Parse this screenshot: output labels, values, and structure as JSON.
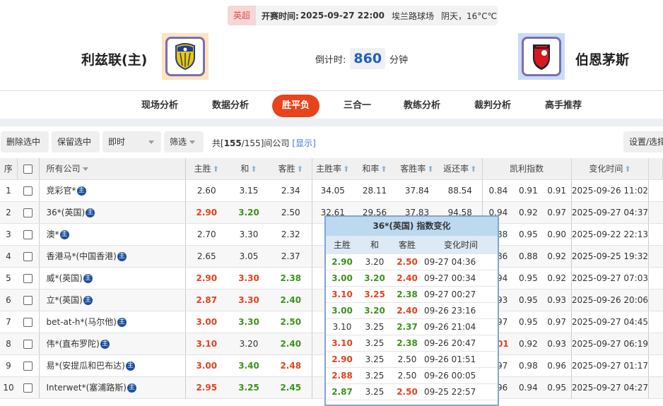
{
  "match": {
    "league": "英超",
    "kickoff_label": "开赛时间:",
    "kickoff": "2025-09-27 22:00",
    "venue": "埃兰路球场",
    "weather": "阴天，16°C℃",
    "home": "利兹联(主)",
    "away": "伯恩茅斯",
    "countdown_label": "倒计时:",
    "countdown": "860",
    "countdown_unit": "分钟"
  },
  "nav": {
    "tabs": [
      "现场分析",
      "数据分析",
      "胜平负",
      "三合一",
      "教练分析",
      "裁判分析",
      "高手推荐"
    ],
    "active": "胜平负"
  },
  "toolbar": {
    "delete": "删除选中",
    "keep": "保留选中",
    "mode": "即时",
    "filter": "筛选",
    "total_prefix": "共[",
    "total_shown": "155",
    "total_all": "/155]间公司",
    "show": "[显示]",
    "settings": "设置/选择"
  },
  "table": {
    "headers": {
      "no": "序",
      "company": "所有公司",
      "home": "主胜",
      "draw": "和",
      "away": "客胜",
      "home_rate": "主胜率",
      "draw_rate": "和率",
      "away_rate": "客胜率",
      "return_rate": "返还率",
      "kelly": "凯利指数",
      "time": "变化时间"
    },
    "badge": "主",
    "rows": [
      {
        "no": "1",
        "company": "竞彩官*",
        "home": "2.60",
        "draw": "3.15",
        "away": "2.34",
        "hc": "",
        "dc": "",
        "ac": "",
        "hr": "34.05",
        "dr": "28.11",
        "ar": "37.84",
        "rr": "88.54",
        "k1": "0.84",
        "k2": "0.91",
        "k3": "0.91",
        "time": "2025-09-26 11:02"
      },
      {
        "no": "2",
        "company": "36*(英国)",
        "home": "2.90",
        "draw": "3.20",
        "away": "2.50",
        "hc": "r",
        "dc": "g",
        "ac": "",
        "hr": "32.61",
        "dr": "29.56",
        "ar": "37.83",
        "rr": "94.58",
        "k1": "0.94",
        "k2": "0.92",
        "k3": "0.97",
        "time": "2025-09-27 04:37"
      },
      {
        "no": "3",
        "company": "澳*",
        "home": "2.70",
        "draw": "3.30",
        "away": "2.32",
        "hc": "",
        "dc": "",
        "ac": "",
        "k1": "0.88",
        "k2": "0.95",
        "k3": "0.90",
        "time": "2025-09-22 22:13"
      },
      {
        "no": "4",
        "company": "香港马*(中国香港)",
        "home": "2.65",
        "draw": "3.05",
        "away": "2.37",
        "hc": "",
        "dc": "",
        "ac": "",
        "k1": "0.86",
        "k2": "0.88",
        "k3": "0.92",
        "time": "2025-09-25 19:32"
      },
      {
        "no": "5",
        "company": "威*(英国)",
        "home": "2.90",
        "draw": "3.30",
        "away": "2.38",
        "hc": "r",
        "dc": "r",
        "ac": "g",
        "k1": "0.94",
        "k2": "0.95",
        "k3": "0.92",
        "time": "2025-09-27 07:03"
      },
      {
        "no": "6",
        "company": "立*(英国)",
        "home": "2.87",
        "draw": "3.30",
        "away": "2.40",
        "hc": "r",
        "dc": "r",
        "ac": "g",
        "k1": "0.93",
        "k2": "0.95",
        "k3": "0.93",
        "time": "2025-09-26 20:06"
      },
      {
        "no": "7",
        "company": "bet-at-h*(马尔他)",
        "home": "3.00",
        "draw": "3.30",
        "away": "2.50",
        "hc": "r",
        "dc": "g",
        "ac": "g",
        "k1": "0.97",
        "k2": "0.95",
        "k3": "0.97",
        "time": "2025-09-27 04:45"
      },
      {
        "no": "8",
        "company": "伟*(直布罗陀)",
        "home": "3.10",
        "draw": "3.20",
        "away": "2.40",
        "hc": "r",
        "dc": "",
        "ac": "g",
        "k1": "1.01",
        "k1c": "r",
        "k2": "0.92",
        "k3": "0.93",
        "time": "2025-09-27 06:19"
      },
      {
        "no": "9",
        "company": "易*(安提瓜和巴布达)",
        "home": "3.00",
        "draw": "3.40",
        "away": "2.48",
        "hc": "r",
        "dc": "g",
        "ac": "r",
        "k1": "0.97",
        "k2": "0.98",
        "k3": "0.96",
        "time": "2025-09-27 01:17"
      },
      {
        "no": "10",
        "company": "Interwet*(塞浦路斯)",
        "home": "2.95",
        "draw": "3.25",
        "away": "2.45",
        "hc": "r",
        "dc": "g",
        "ac": "g",
        "k1": "0.96",
        "k2": "0.94",
        "k3": "0.95",
        "time": "2025-09-27 04:27"
      }
    ]
  },
  "popup": {
    "title": "36*(英国) 指数变化",
    "headers": [
      "主胜",
      "和",
      "客胜",
      "变化时间"
    ],
    "rows": [
      {
        "h": "2.90",
        "hc": "g",
        "d": "3.20",
        "dc": "",
        "a": "2.50",
        "ac": "r",
        "t": "09-27 04:36"
      },
      {
        "h": "3.00",
        "hc": "g",
        "d": "3.20",
        "dc": "g",
        "a": "2.40",
        "ac": "r",
        "t": "09-27 00:34"
      },
      {
        "h": "3.10",
        "hc": "r",
        "d": "3.25",
        "dc": "r",
        "a": "2.38",
        "ac": "g",
        "t": "09-27 00:27"
      },
      {
        "h": "3.00",
        "hc": "g",
        "d": "3.20",
        "dc": "g",
        "a": "2.40",
        "ac": "r",
        "t": "09-26 23:16"
      },
      {
        "h": "3.10",
        "hc": "",
        "d": "3.25",
        "dc": "",
        "a": "2.37",
        "ac": "g",
        "t": "09-26 21:04"
      },
      {
        "h": "3.10",
        "hc": "r",
        "d": "3.25",
        "dc": "",
        "a": "2.38",
        "ac": "g",
        "t": "09-26 20:47"
      },
      {
        "h": "2.90",
        "hc": "r",
        "d": "3.25",
        "dc": "",
        "a": "2.50",
        "ac": "",
        "t": "09-26 01:51"
      },
      {
        "h": "2.88",
        "hc": "r",
        "d": "3.25",
        "dc": "",
        "a": "2.50",
        "ac": "",
        "t": "09-26 00:05"
      },
      {
        "h": "2.87",
        "hc": "g",
        "d": "3.25",
        "dc": "",
        "a": "2.50",
        "ac": "r",
        "t": "09-25 22:57"
      }
    ]
  },
  "colors": {
    "accent": "#e8431a",
    "up": "#e8401c",
    "down": "#3a941a",
    "popup_header": "#bcd9f0"
  }
}
